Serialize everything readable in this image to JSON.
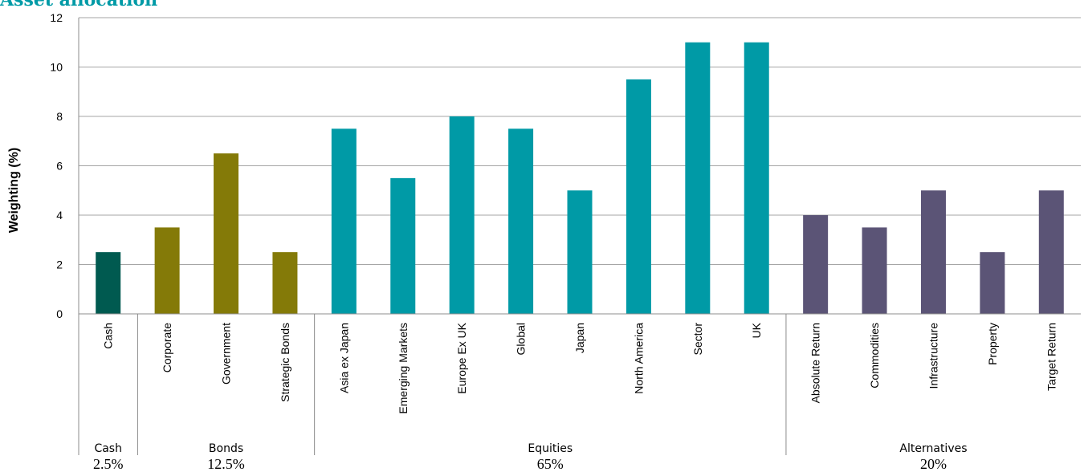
{
  "chart_data": {
    "type": "bar",
    "title": "Asset allocation",
    "ylabel": "Weighting (%)",
    "xlabel": "",
    "ylim": [
      0,
      12
    ],
    "yticks": [
      0,
      2,
      4,
      6,
      8,
      10,
      12
    ],
    "grid": true,
    "legend": "none",
    "categories": [
      "Cash",
      "Corporate",
      "Government",
      "Strategic Bonds",
      "Asia ex Japan",
      "Emerging Markets",
      "Europe Ex UK",
      "Global",
      "Japan",
      "North America",
      "Sector",
      "UK",
      "Absolute Return",
      "Commodities",
      "Infrastructure",
      "Property",
      "Target Return"
    ],
    "values": [
      2.5,
      3.5,
      6.5,
      2.5,
      7.5,
      5.5,
      8,
      7.5,
      5,
      9.5,
      11,
      11,
      4,
      3.5,
      5,
      2.5,
      5
    ],
    "groups": [
      {
        "name": "Cash",
        "total": "2.5%",
        "start": 0,
        "count": 1,
        "color": "#005a50"
      },
      {
        "name": "Bonds",
        "total": "12.5%",
        "start": 1,
        "count": 3,
        "color": "#847a08"
      },
      {
        "name": "Equities",
        "total": "65%",
        "start": 4,
        "count": 8,
        "color": "#009aa6"
      },
      {
        "name": "Alternatives",
        "total": "20%",
        "start": 12,
        "count": 5,
        "color": "#5b5476"
      }
    ]
  }
}
